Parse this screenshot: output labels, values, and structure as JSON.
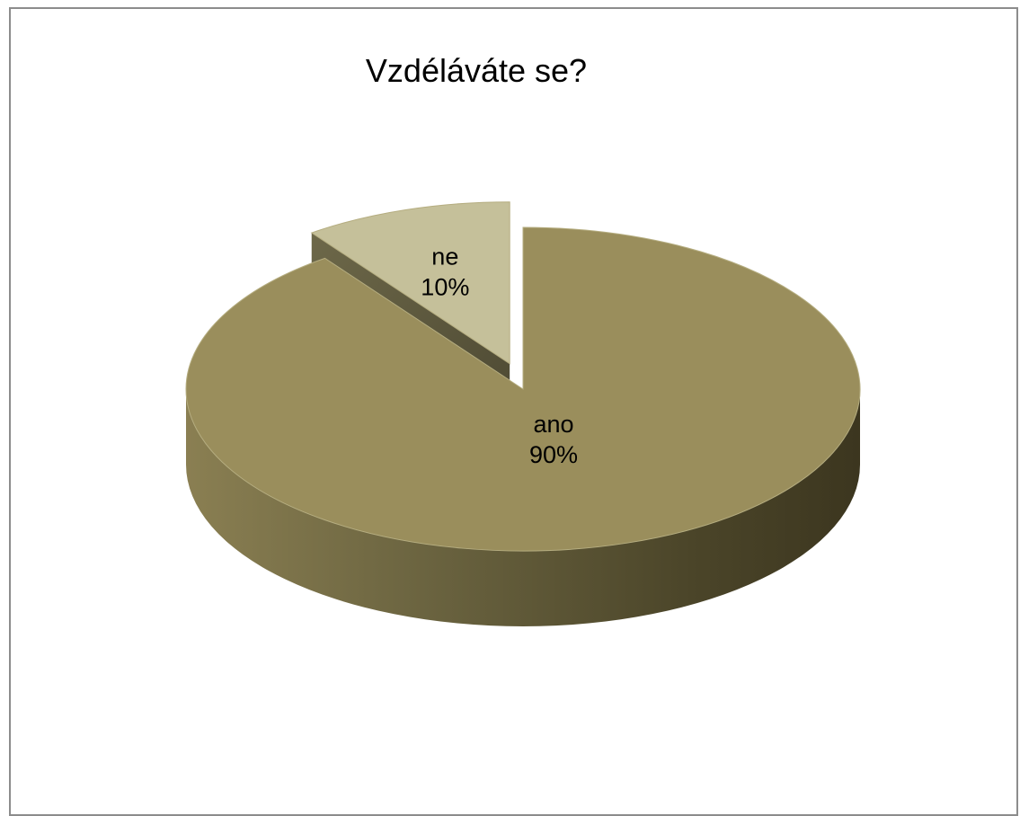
{
  "chart_data": {
    "type": "pie",
    "title": "Vzdéláváte se?",
    "categories": [
      "ano",
      "ne"
    ],
    "values": [
      90,
      10
    ],
    "value_labels": [
      "90%",
      "10%"
    ],
    "exploded": [
      "ne"
    ],
    "style_3d": true,
    "colors": {
      "ano": "#9a8e5c",
      "ne": "#c5c09a",
      "side_dark": "#403a22",
      "side_light": "#8a7f52"
    }
  }
}
